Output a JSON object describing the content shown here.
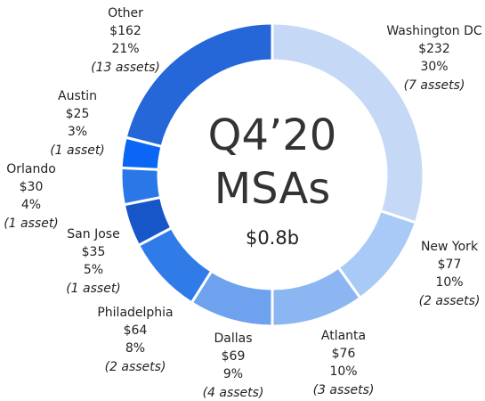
{
  "chart_data": {
    "type": "donut",
    "center_text": [
      "Q4’20",
      "MSAs",
      "$0.8b"
    ],
    "categories": [
      "Washington DC",
      "New York",
      "Atlanta",
      "Dallas",
      "Philadelphia",
      "San Jose",
      "Orlando",
      "Austin",
      "Other"
    ],
    "values": [
      232,
      77,
      76,
      69,
      64,
      35,
      30,
      25,
      162
    ],
    "value_labels": [
      "$232",
      "$77",
      "$76",
      "$69",
      "$64",
      "$35",
      "$30",
      "$25",
      "$162"
    ],
    "percent_labels": [
      "30%",
      "10%",
      "10%",
      "9%",
      "8%",
      "5%",
      "4%",
      "3%",
      "21%"
    ],
    "asset_labels": [
      "(7 assets)",
      "(2 assets)",
      "(3 assets)",
      "(4 assets)",
      "(2 assets)",
      "(1 asset)",
      "(1 asset)",
      "(1 asset)",
      "(13 assets)"
    ],
    "colors": [
      "#c5d9f7",
      "#a9c9f6",
      "#8bb6f1",
      "#6ea2ee",
      "#2f7be8",
      "#1656c8",
      "#2a78e8",
      "#0b66f5",
      "#2566d8"
    ]
  }
}
